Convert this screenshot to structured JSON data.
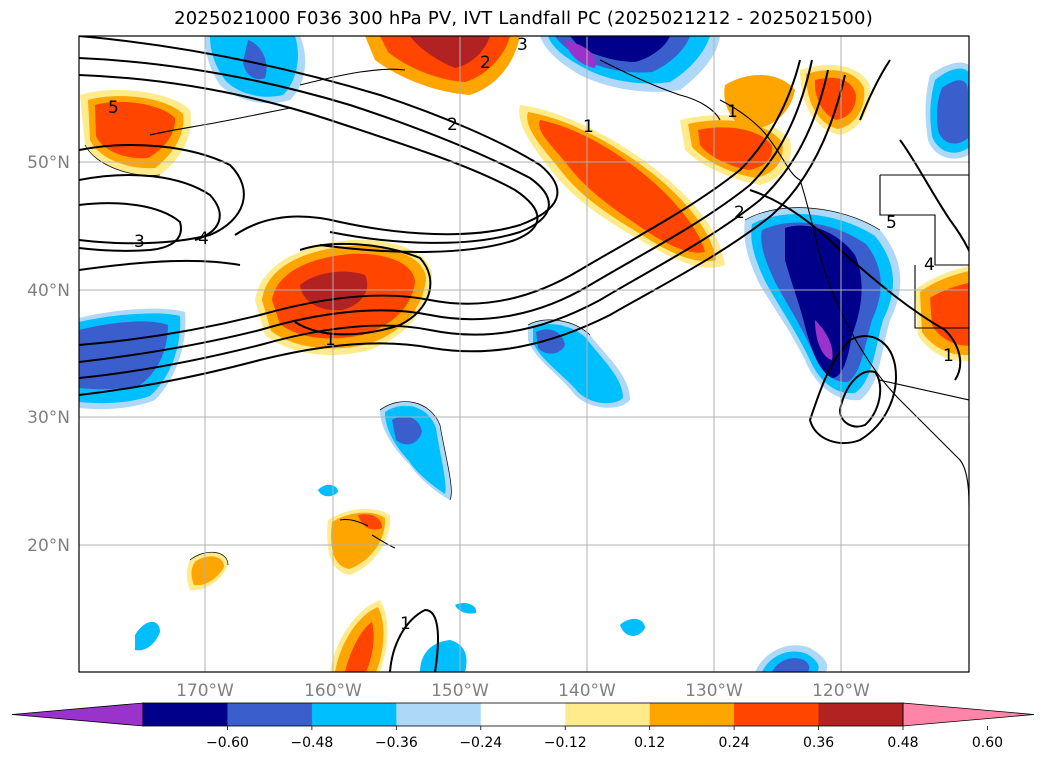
{
  "title": "2025021000 F036 300 hPa PV, IVT Landfall PC (2025021212 - 2025021500)",
  "latitude_labels": [
    "50°N",
    "40°N",
    "30°N",
    "20°N"
  ],
  "longitude_labels": [
    "170°W",
    "160°W",
    "150°W",
    "140°W",
    "130°W",
    "120°W"
  ],
  "colorbar": {
    "tick_labels": [
      "−0.60",
      "−0.48",
      "−0.36",
      "−0.24",
      "−0.12",
      "0.12",
      "0.24",
      "0.36",
      "0.48",
      "0.60"
    ],
    "colors": [
      "#9933cc",
      "#00008b",
      "#3a5fcd",
      "#00bfff",
      "#add8f7",
      "#ffffff",
      "#ffeb8c",
      "#ffa500",
      "#ff4500",
      "#b22222",
      "#ff85a8"
    ]
  },
  "contour_labels": [
    "5",
    "3",
    "4",
    "2",
    "1",
    "1",
    "3",
    "2",
    "1",
    "2",
    "5",
    "4",
    "1",
    "1"
  ],
  "fill_colors": {
    "purple": "#9933cc",
    "navy": "#00008b",
    "blue": "#3a5fcd",
    "cyan": "#00bfff",
    "lightblue": "#add8f7",
    "yellow": "#ffeb8c",
    "orange": "#ffa500",
    "red": "#ff4500",
    "darkred": "#b22222",
    "pink": "#ff85a8"
  }
}
